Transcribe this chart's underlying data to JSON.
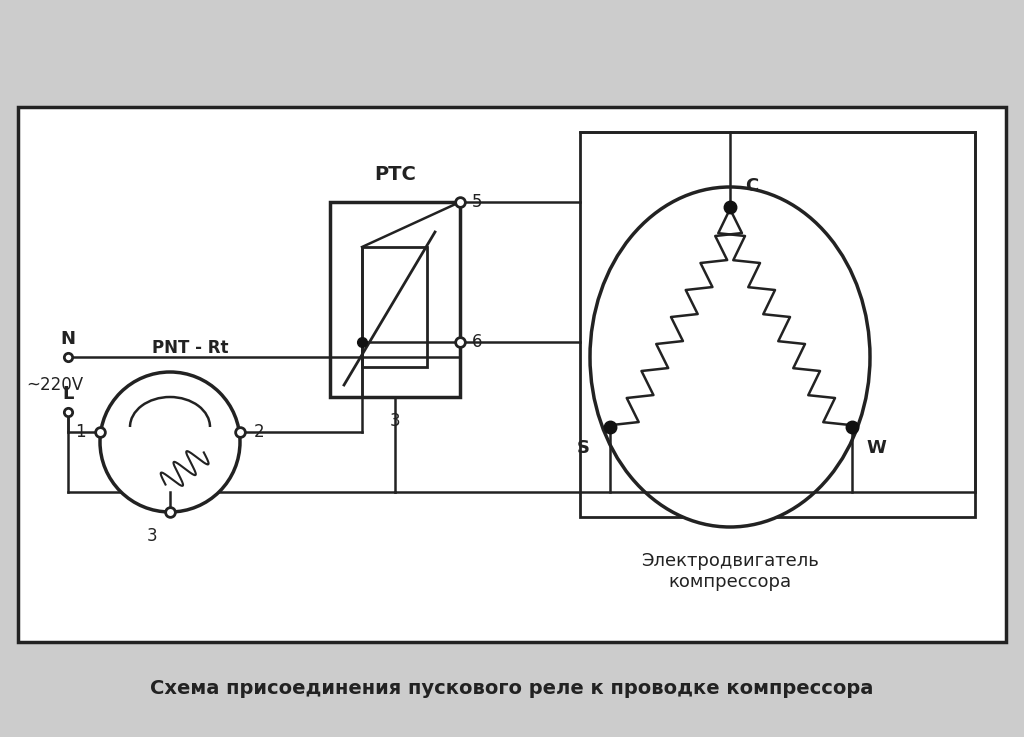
{
  "title": "Схема присоединения пускового реле к проводке компрессора",
  "motor_label": "Электродвигатель\nкомпрессора",
  "ptc_label": "PTC",
  "pnt_label": "PNT - Rt",
  "voltage_label": "~220V",
  "N_label": "N",
  "L_label": "L",
  "bg_color": "#ffffff",
  "border_color": "#222222",
  "line_color": "#222222",
  "fig_bg": "#cccccc",
  "node_color": "#111111",
  "title_fontsize": 14,
  "lw": 1.8
}
